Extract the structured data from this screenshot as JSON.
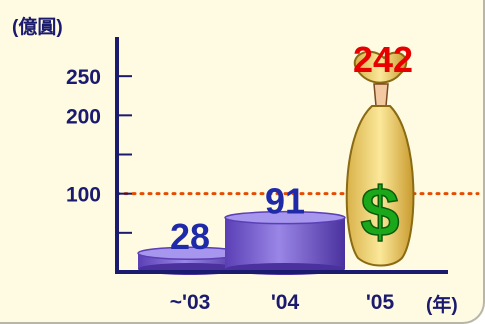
{
  "chart_data": {
    "type": "bar",
    "categories": [
      "~'03",
      "'04",
      "'05"
    ],
    "values": [
      28,
      91,
      242
    ],
    "ylim": [
      0,
      300
    ],
    "yticks": [
      100,
      200,
      250
    ],
    "ytick_labels": [
      "100",
      "200",
      "250"
    ],
    "unit_label": "(億圓)",
    "x_unit_label": "(年)",
    "reference_line_value": 100,
    "data_label_colors": [
      "#1f2aa8",
      "#1f2aa8",
      "#e80000"
    ],
    "bar_color": "#7b5fd0",
    "reference_line_color": "#e64b00",
    "last_category_icon": "money-bag-icon",
    "grid": false,
    "legend": "none"
  }
}
